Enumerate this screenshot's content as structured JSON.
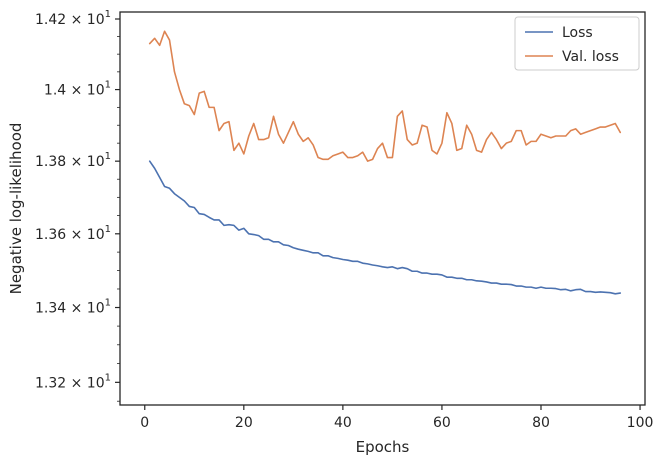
{
  "chart_data": {
    "type": "line",
    "xlabel": "Epochs",
    "ylabel": "Negative log-likelihood",
    "xlim": [
      -5,
      101
    ],
    "ylim": [
      13.14,
      14.22
    ],
    "y_scale": "log",
    "grid": false,
    "legend_placement": "top-right",
    "x_ticks": [
      0,
      20,
      40,
      60,
      80,
      100
    ],
    "x_tick_labels": [
      "0",
      "20",
      "40",
      "60",
      "80",
      "100"
    ],
    "y_ticks": [
      13.2,
      13.4,
      13.6,
      13.8,
      14.0,
      14.2
    ],
    "y_tick_labels": [
      {
        "mantissa": "1.32",
        "exp": "1"
      },
      {
        "mantissa": "1.34",
        "exp": "1"
      },
      {
        "mantissa": "1.36",
        "exp": "1"
      },
      {
        "mantissa": "1.38",
        "exp": "1"
      },
      {
        "mantissa": "1.4",
        "exp": "1"
      },
      {
        "mantissa": "1.42",
        "exp": "1"
      }
    ],
    "tick_times_sign": "×",
    "tick_base": "10",
    "series": [
      {
        "name": "Loss",
        "color": "#4c72b0",
        "x": [
          1,
          2,
          3,
          4,
          5,
          6,
          7,
          8,
          9,
          10,
          11,
          12,
          13,
          14,
          15,
          16,
          17,
          18,
          19,
          20,
          21,
          22,
          23,
          24,
          25,
          26,
          27,
          28,
          29,
          30,
          31,
          32,
          33,
          34,
          35,
          36,
          37,
          38,
          39,
          40,
          41,
          42,
          43,
          44,
          45,
          46,
          47,
          48,
          49,
          50,
          51,
          52,
          53,
          54,
          55,
          56,
          57,
          58,
          59,
          60,
          61,
          62,
          63,
          64,
          65,
          66,
          67,
          68,
          69,
          70,
          71,
          72,
          73,
          74,
          75,
          76,
          77,
          78,
          79,
          80,
          81,
          82,
          83,
          84,
          85,
          86,
          87,
          88,
          89,
          90,
          91,
          92,
          93,
          94,
          95,
          96
        ],
        "y": [
          13.8,
          13.78,
          13.755,
          13.73,
          13.725,
          13.71,
          13.7,
          13.69,
          13.675,
          13.672,
          13.655,
          13.653,
          13.645,
          13.638,
          13.638,
          13.623,
          13.625,
          13.623,
          13.61,
          13.615,
          13.6,
          13.598,
          13.595,
          13.585,
          13.585,
          13.578,
          13.578,
          13.57,
          13.568,
          13.562,
          13.558,
          13.555,
          13.552,
          13.548,
          13.548,
          13.54,
          13.54,
          13.535,
          13.533,
          13.53,
          13.528,
          13.525,
          13.525,
          13.52,
          13.518,
          13.515,
          13.513,
          13.51,
          13.508,
          13.51,
          13.505,
          13.508,
          13.505,
          13.498,
          13.498,
          13.493,
          13.493,
          13.49,
          13.49,
          13.488,
          13.482,
          13.482,
          13.479,
          13.479,
          13.475,
          13.475,
          13.472,
          13.471,
          13.469,
          13.466,
          13.466,
          13.463,
          13.463,
          13.462,
          13.458,
          13.458,
          13.455,
          13.455,
          13.452,
          13.455,
          13.452,
          13.452,
          13.451,
          13.448,
          13.449,
          13.445,
          13.448,
          13.449,
          13.443,
          13.443,
          13.441,
          13.442,
          13.441,
          13.44,
          13.437,
          13.439
        ]
      },
      {
        "name": "Val. loss",
        "color": "#dd8452",
        "x": [
          1,
          2,
          3,
          4,
          5,
          6,
          7,
          8,
          9,
          10,
          11,
          12,
          13,
          14,
          15,
          16,
          17,
          18,
          19,
          20,
          21,
          22,
          23,
          24,
          25,
          26,
          27,
          28,
          29,
          30,
          31,
          32,
          33,
          34,
          35,
          36,
          37,
          38,
          39,
          40,
          41,
          42,
          43,
          44,
          45,
          46,
          47,
          48,
          49,
          50,
          51,
          52,
          53,
          54,
          55,
          56,
          57,
          58,
          59,
          60,
          61,
          62,
          63,
          64,
          65,
          66,
          67,
          68,
          69,
          70,
          71,
          72,
          73,
          74,
          75,
          76,
          77,
          78,
          79,
          80,
          81,
          82,
          83,
          84,
          85,
          86,
          87,
          88,
          89,
          90,
          91,
          92,
          93,
          94,
          95,
          96
        ],
        "y": [
          14.13,
          14.145,
          14.125,
          14.165,
          14.14,
          14.05,
          14.0,
          13.96,
          13.955,
          13.93,
          13.99,
          13.995,
          13.95,
          13.95,
          13.885,
          13.905,
          13.91,
          13.83,
          13.85,
          13.82,
          13.87,
          13.905,
          13.86,
          13.86,
          13.865,
          13.925,
          13.875,
          13.85,
          13.88,
          13.91,
          13.875,
          13.855,
          13.865,
          13.845,
          13.81,
          13.805,
          13.805,
          13.815,
          13.82,
          13.825,
          13.81,
          13.81,
          13.815,
          13.825,
          13.8,
          13.805,
          13.835,
          13.85,
          13.81,
          13.81,
          13.925,
          13.94,
          13.86,
          13.845,
          13.85,
          13.9,
          13.895,
          13.83,
          13.82,
          13.85,
          13.935,
          13.905,
          13.83,
          13.835,
          13.9,
          13.875,
          13.83,
          13.825,
          13.86,
          13.88,
          13.86,
          13.835,
          13.85,
          13.855,
          13.885,
          13.885,
          13.845,
          13.855,
          13.855,
          13.875,
          13.87,
          13.865,
          13.87,
          13.87,
          13.87,
          13.885,
          13.89,
          13.875,
          13.88,
          13.885,
          13.89,
          13.895,
          13.895,
          13.9,
          13.905,
          13.88
        ]
      }
    ]
  }
}
